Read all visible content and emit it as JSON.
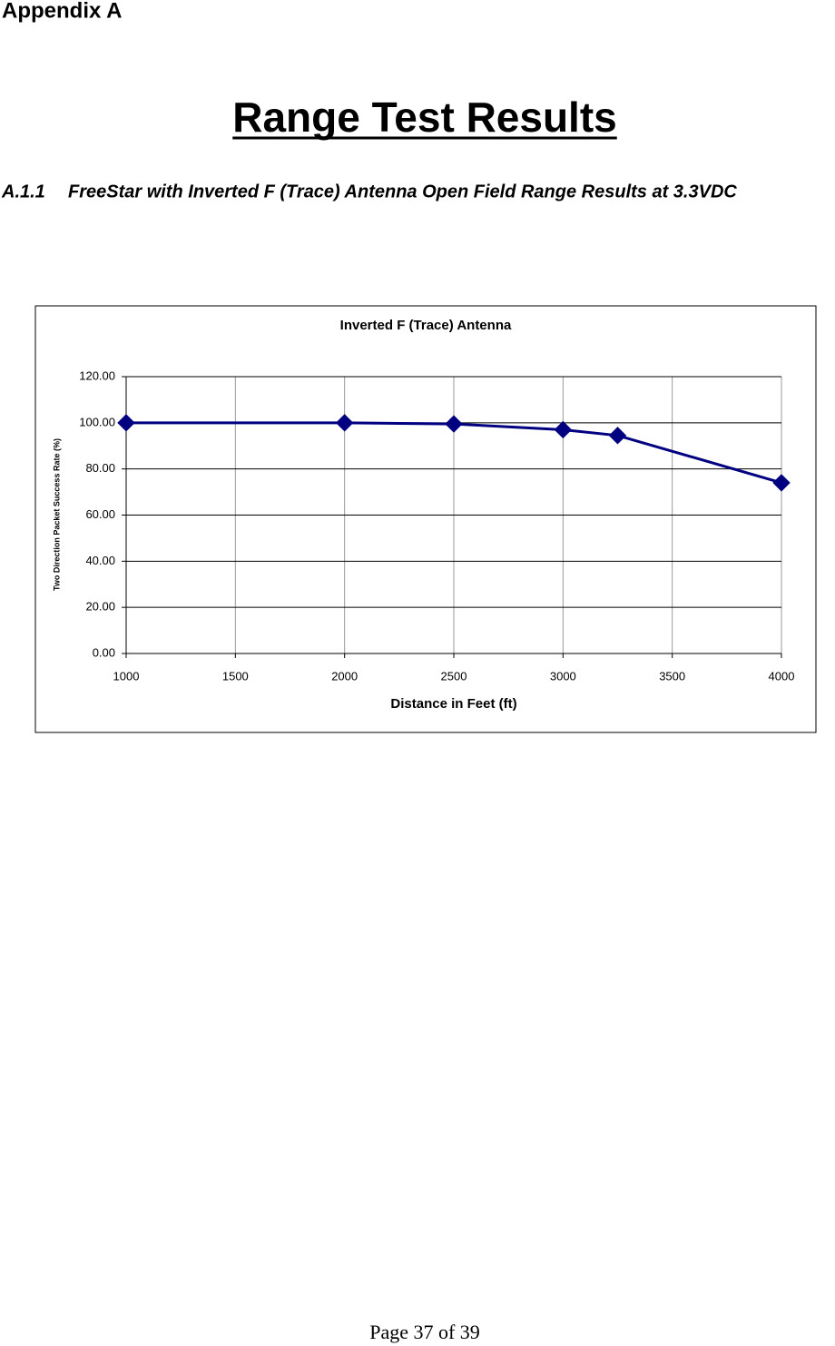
{
  "appendix": "Appendix A",
  "title": "Range Test Results",
  "section": {
    "number": "A.1.1",
    "heading": "FreeStar with Inverted F (Trace) Antenna Open Field Range Results at 3.3VDC"
  },
  "chart_data": {
    "type": "line",
    "title": "Inverted F (Trace) Antenna",
    "x_label": "Distance in Feet (ft)",
    "y_label": "Two Direction Packet Success Rate (%)",
    "x": [
      1000,
      2000,
      2500,
      3000,
      3250,
      4000
    ],
    "values": [
      100,
      100,
      99.5,
      97,
      94.5,
      74
    ],
    "color": "#000080",
    "xlim": [
      1000,
      4000
    ],
    "xticks": [
      1000,
      1500,
      2000,
      2500,
      3000,
      3500,
      4000
    ],
    "ylim": [
      0,
      120
    ],
    "yticks": [
      {
        "value": 0,
        "label": "0.00"
      },
      {
        "value": 20,
        "label": "20.00"
      },
      {
        "value": 40,
        "label": "40.00"
      },
      {
        "value": 60,
        "label": "60.00"
      },
      {
        "value": 80,
        "label": "80.00"
      },
      {
        "value": 100,
        "label": "100.00"
      },
      {
        "value": 120,
        "label": "120.00"
      }
    ],
    "grid": true
  },
  "footer": "Page 37 of 39"
}
